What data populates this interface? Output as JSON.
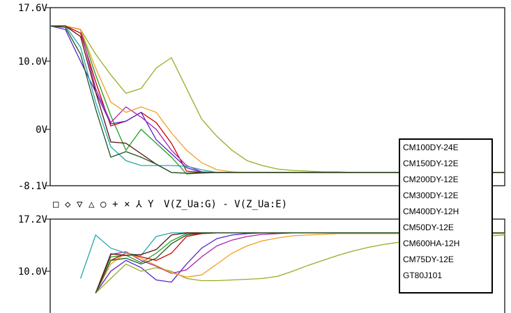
{
  "chart_data": [
    {
      "type": "line",
      "title": "",
      "ylabel": "",
      "xlabel": "",
      "ylim": [
        -8.1,
        17.6
      ],
      "yticks": [
        {
          "value": 17.6,
          "label": "17.6V"
        },
        {
          "value": 10.0,
          "label": "10.0V"
        },
        {
          "value": 0,
          "label": "0V"
        },
        {
          "value": -8.1,
          "label": "-8.1V"
        }
      ],
      "x": [
        0,
        1,
        2,
        3,
        4,
        5,
        6,
        7,
        8,
        9,
        10,
        11,
        12,
        13,
        14,
        15,
        16,
        17,
        18,
        19,
        20,
        21,
        22,
        23,
        24,
        25,
        26,
        27,
        28,
        29,
        30
      ],
      "trace_label": "V(Z_Ua:G) - V(Z_Ua:E)",
      "marker_symbols": [
        "□",
        "◇",
        "▽",
        "△",
        "○",
        "+",
        "×",
        "⅄",
        "Y"
      ],
      "series": [
        {
          "name": "CM100DY-24E",
          "color": "#1fa01f",
          "values": [
            15,
            15,
            14.5,
            8,
            2,
            -3,
            0,
            -2,
            -4,
            -6.4,
            -6.3,
            -6.2,
            -6.2,
            -6.2,
            -6.2,
            -6.2,
            -6.2,
            -6.2,
            -6.2,
            -6.2,
            -6.2,
            -6.2,
            -6.2,
            -6.2,
            -6.2,
            -6.2,
            -6.2,
            -6.2,
            -6.2,
            -6.2,
            -6.2
          ]
        },
        {
          "name": "CM150DY-12E",
          "color": "#cc0000",
          "values": [
            15,
            15,
            14,
            7,
            0.5,
            1.2,
            2.5,
            1,
            -2,
            -6,
            -6.2,
            -6.2,
            -6.2,
            -6.2,
            -6.2,
            -6.2,
            -6.2,
            -6.2,
            -6.2,
            -6.2,
            -6.2,
            -6.2,
            -6.2,
            -6.2,
            -6.2,
            -6.2,
            -6.2,
            -6.2,
            -6.2,
            -6.2,
            -6.2
          ]
        },
        {
          "name": "CM200DY-12E",
          "color": "#5522cc",
          "values": [
            15,
            14.5,
            10,
            5.5,
            0.8,
            1.2,
            2.5,
            -1.5,
            -3.5,
            -5.5,
            -6.2,
            -6.2,
            -6.2,
            -6.2,
            -6.2,
            -6.2,
            -6.2,
            -6.2,
            -6.2,
            -6.2,
            -6.2,
            -6.2,
            -6.2,
            -6.2,
            -6.2,
            -6.2,
            -6.2,
            -6.2,
            -6.2,
            -6.2,
            -6.2
          ]
        },
        {
          "name": "CM300DY-12E",
          "color": "#99aa22",
          "values": [
            15,
            15,
            14.5,
            11,
            8,
            5.3,
            6,
            9,
            10.5,
            6,
            1.5,
            -1,
            -3,
            -4.5,
            -5.2,
            -5.7,
            -5.9,
            -6,
            -6.1,
            -6.1,
            -6.2,
            -6.2,
            -6.2,
            -6.2,
            -6.2,
            -6.2,
            -6.2,
            -6.2,
            -6.2,
            -6.2,
            -6.2
          ]
        },
        {
          "name": "CM400DY-12H",
          "color": "#aa22aa",
          "values": [
            15,
            15,
            14.5,
            6,
            1,
            3.3,
            1.8,
            0,
            -3,
            -5.2,
            -6.1,
            -6.2,
            -6.2,
            -6.2,
            -6.2,
            -6.2,
            -6.2,
            -6.2,
            -6.2,
            -6.2,
            -6.2,
            -6.2,
            -6.2,
            -6.2,
            -6.2,
            -6.2,
            -6.2,
            -6.2,
            -6.2,
            -6.2,
            -6.2
          ]
        },
        {
          "name": "CM50DY-12E",
          "color": "#22aaaa",
          "values": [
            15,
            15,
            12,
            4,
            -2.5,
            -4.5,
            -5.2,
            -5.2,
            -5.2,
            -5.3,
            -5.8,
            -6.2,
            -6.2,
            -6.2,
            -6.2,
            -6.2,
            -6.2,
            -6.2,
            -6.2,
            -6.2,
            -6.2,
            -6.2,
            -6.2,
            -6.2,
            -6.2,
            -6.2,
            -6.2,
            -6.2,
            -6.2,
            -6.2,
            -6.2
          ]
        },
        {
          "name": "CM600HA-12H",
          "color": "#f0a020",
          "values": [
            15,
            15,
            14.5,
            9,
            4,
            2.5,
            3.3,
            2.5,
            -0.5,
            -3,
            -4.8,
            -5.8,
            -6.1,
            -6.2,
            -6.2,
            -6.2,
            -6.2,
            -6.2,
            -6.2,
            -6.2,
            -6.2,
            -6.2,
            -6.2,
            -6.2,
            -6.2,
            -6.2,
            -6.2,
            -6.2,
            -6.2,
            -6.2,
            -6.2
          ]
        },
        {
          "name": "CM75DY-12E",
          "color": "#551111",
          "values": [
            15,
            15,
            13.5,
            5.5,
            -1.8,
            -2,
            -3.5,
            -5,
            -6.2,
            -6.3,
            -6.2,
            -6.2,
            -6.2,
            -6.2,
            -6.2,
            -6.2,
            -6.2,
            -6.2,
            -6.2,
            -6.2,
            -6.2,
            -6.2,
            -6.2,
            -6.2,
            -6.2,
            -6.2,
            -6.2,
            -6.2,
            -6.2,
            -6.2,
            -6.2
          ]
        },
        {
          "name": "GT80J101",
          "color": "#225522",
          "values": [
            15,
            14.8,
            11,
            3,
            -4,
            -3.2,
            -4,
            -5,
            -6.2,
            -6.3,
            -6.2,
            -6.2,
            -6.2,
            -6.2,
            -6.2,
            -6.2,
            -6.2,
            -6.2,
            -6.2,
            -6.2,
            -6.2,
            -6.2,
            -6.2,
            -6.2,
            -6.2,
            -6.2,
            -6.2,
            -6.2,
            -6.2,
            -6.2,
            -6.2
          ]
        }
      ]
    },
    {
      "type": "line",
      "title": "",
      "ylabel": "",
      "xlabel": "",
      "ylim": [
        7.3,
        17.2
      ],
      "yticks": [
        {
          "value": 17.2,
          "label": "17.2V"
        },
        {
          "value": 10.0,
          "label": "10.0V"
        }
      ],
      "x": [
        0,
        1,
        2,
        3,
        4,
        5,
        6,
        7,
        8,
        9,
        10,
        11,
        12,
        13,
        14,
        15,
        16,
        17,
        18,
        19,
        20,
        21,
        22,
        23,
        24,
        25,
        26,
        27,
        28,
        29,
        30
      ],
      "series": [
        {
          "name": "CM100DY-24E",
          "color": "#1fa01f",
          "values": [
            null,
            null,
            null,
            7,
            12,
            12.2,
            11.2,
            12.5,
            14.2,
            15.2,
            15.3,
            15.3,
            15.3,
            15.3,
            15.3,
            15.3,
            15.3,
            15.3,
            15.3,
            15.3,
            15.3,
            15.3,
            15.3,
            15.3,
            15.3,
            15.3,
            15.3,
            15.3,
            15.3,
            15.3,
            15.3
          ]
        },
        {
          "name": "CM150DY-12E",
          "color": "#cc0000",
          "values": [
            null,
            null,
            null,
            7,
            11.5,
            12.5,
            12,
            11.5,
            12.5,
            14.8,
            15.2,
            15.3,
            15.3,
            15.3,
            15.3,
            15.3,
            15.3,
            15.3,
            15.3,
            15.3,
            15.3,
            15.3,
            15.3,
            15.3,
            15.3,
            15.3,
            15.3,
            15.3,
            15.3,
            15.3,
            15.3
          ]
        },
        {
          "name": "CM200DY-12E",
          "color": "#5522cc",
          "values": [
            null,
            null,
            null,
            7,
            10,
            11.5,
            10.5,
            8.8,
            8.5,
            11,
            13.2,
            14.5,
            15,
            15.2,
            15.3,
            15.3,
            15.3,
            15.3,
            15.3,
            15.3,
            15.3,
            15.3,
            15.3,
            15.3,
            15.3,
            15.3,
            15.3,
            15.3,
            15.3,
            15.3,
            15.3
          ]
        },
        {
          "name": "CM300DY-12E",
          "color": "#99aa22",
          "values": [
            null,
            null,
            null,
            7,
            9,
            11,
            10,
            10.5,
            10,
            9,
            8.7,
            8.7,
            8.8,
            8.9,
            9,
            9.3,
            10,
            10.8,
            11.5,
            12.2,
            12.8,
            13.3,
            13.7,
            14,
            14.2,
            14.4,
            14.6,
            14.7,
            14.8,
            14.9,
            15
          ]
        },
        {
          "name": "CM400DY-12H",
          "color": "#aa22aa",
          "values": [
            null,
            null,
            null,
            7,
            12.3,
            12.7,
            11.5,
            10.7,
            9.7,
            10.2,
            12,
            13.5,
            14.3,
            14.8,
            15.1,
            15.2,
            15.3,
            15.3,
            15.3,
            15.3,
            15.3,
            15.3,
            15.3,
            15.3,
            15.3,
            15.3,
            15.3,
            15.3,
            15.3,
            15.3,
            15.3
          ]
        },
        {
          "name": "CM50DY-12E",
          "color": "#22aaaa",
          "values": [
            null,
            null,
            9,
            15,
            13.2,
            12.5,
            12.2,
            14.8,
            15.3,
            15.3,
            15.3,
            15.3,
            15.3,
            15.3,
            15.3,
            15.3,
            15.3,
            15.3,
            15.3,
            15.3,
            15.3,
            15.3,
            15.3,
            15.3,
            15.3,
            15.3,
            15.3,
            15.3,
            15.3,
            15.3,
            15.3
          ]
        },
        {
          "name": "CM600HA-12H",
          "color": "#f0a020",
          "values": [
            null,
            null,
            null,
            7,
            11,
            12.5,
            11.8,
            10.8,
            9.8,
            9.2,
            9.5,
            11,
            12.5,
            13.5,
            14.2,
            14.6,
            14.9,
            15,
            15.1,
            15.2,
            15.2,
            15.2,
            15.2,
            15.2,
            15.2,
            15.2,
            15.2,
            15.2,
            15.2,
            15.2,
            15.2
          ]
        },
        {
          "name": "CM75DY-12E",
          "color": "#551111",
          "values": [
            null,
            null,
            null,
            7,
            12.4,
            12.2,
            12.3,
            13,
            15,
            15.3,
            15.3,
            15.3,
            15.3,
            15.3,
            15.3,
            15.3,
            15.3,
            15.3,
            15.3,
            15.3,
            15.3,
            15.3,
            15.3,
            15.3,
            15.3,
            15.3,
            15.3,
            15.3,
            15.3,
            15.3,
            15.3
          ]
        },
        {
          "name": "GT80J101",
          "color": "#225522",
          "values": [
            null,
            null,
            null,
            7,
            11.5,
            11.8,
            11,
            11.8,
            13.8,
            15,
            15.3,
            15.3,
            15.3,
            15.3,
            15.3,
            15.3,
            15.3,
            15.3,
            15.3,
            15.3,
            15.3,
            15.3,
            15.3,
            15.3,
            15.3,
            15.3,
            15.3,
            15.3,
            15.3,
            15.3,
            15.3
          ]
        }
      ]
    }
  ]
}
